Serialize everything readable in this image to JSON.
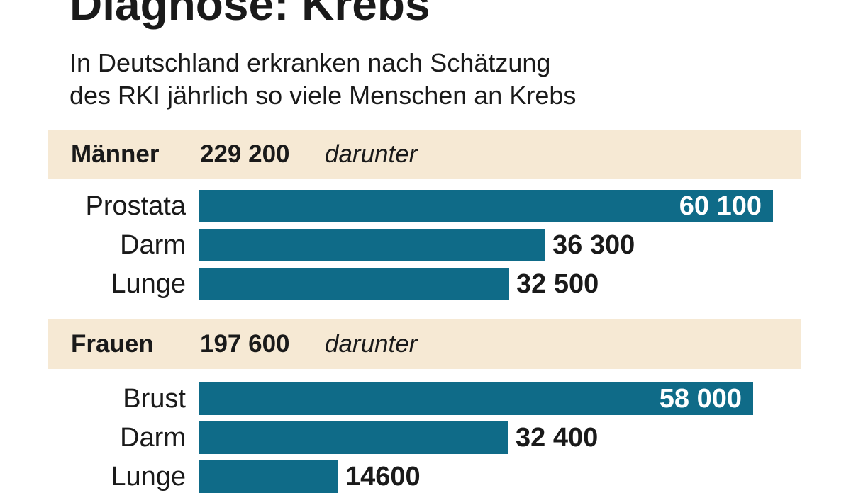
{
  "title": "Diagnose: Krebs",
  "subtitle_lines": [
    "In Deutschland erkranken nach Schätzung",
    "des RKI jährlich so viele Menschen an Krebs"
  ],
  "colors": {
    "bar": "#0f6b88",
    "band": "#f6e9d4",
    "inside_label": "#ffffff",
    "text": "#1a1a1a"
  },
  "groups": [
    {
      "name": "Männer",
      "total": "229 200",
      "note": "darunter"
    },
    {
      "name": "Frauen",
      "total": "197 600",
      "note": "darunter"
    }
  ],
  "chart_data": {
    "type": "bar",
    "title": "Diagnose: Krebs",
    "subtitle": "In Deutschland erkranken nach Schätzung des RKI jährlich so viele Menschen an Krebs",
    "xlim": [
      0,
      60100
    ],
    "series": [
      {
        "name": "Männer",
        "categories": [
          "Prostata",
          "Darm",
          "Lunge"
        ],
        "values": [
          60100,
          36300,
          32500
        ],
        "labels": [
          "60 100",
          "36 300",
          "32 500"
        ]
      },
      {
        "name": "Frauen",
        "categories": [
          "Brust",
          "Darm",
          "Lunge"
        ],
        "values": [
          58000,
          32400,
          14600
        ],
        "labels": [
          "58 000",
          "32 400",
          "14600"
        ]
      }
    ]
  }
}
